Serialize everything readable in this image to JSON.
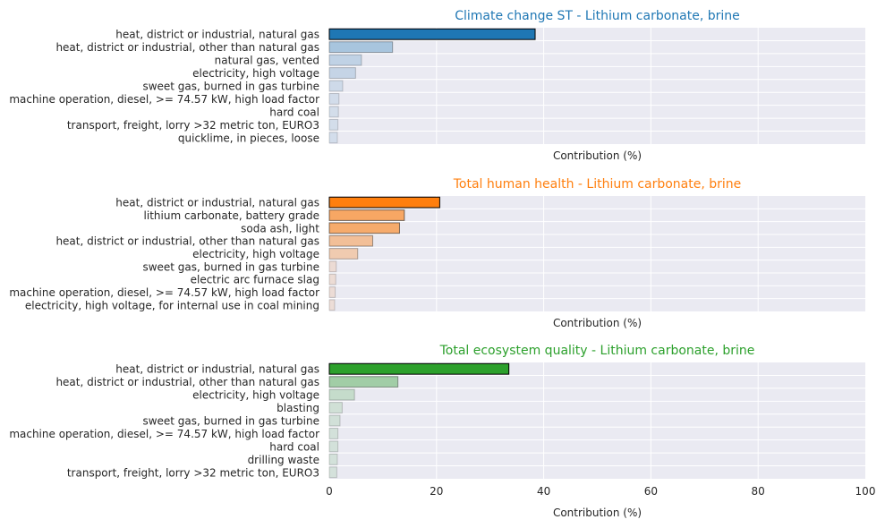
{
  "chart_data": [
    {
      "type": "bar",
      "orientation": "horizontal",
      "title": "Climate change ST - Lithium carbonate, brine",
      "title_color": "#1f77b4",
      "xlabel": "Contribution (%)",
      "xlim": [
        0,
        100
      ],
      "grid": true,
      "base_color": "#1f77b4",
      "categories": [
        "heat, district or industrial, natural gas",
        "heat, district or industrial, other than natural gas",
        "natural gas, vented",
        "electricity, high voltage",
        "sweet gas, burned in gas turbine",
        "machine operation, diesel, >= 74.57 kW, high load factor",
        "hard coal",
        "transport, freight, lorry >32 metric ton, EURO3",
        "quicklime, in pieces, loose"
      ],
      "values": [
        38.4,
        11.8,
        6.0,
        4.9,
        2.5,
        1.8,
        1.7,
        1.6,
        1.5
      ]
    },
    {
      "type": "bar",
      "orientation": "horizontal",
      "title": "Total human health - Lithium carbonate, brine",
      "title_color": "#ff7f0e",
      "xlabel": "Contribution (%)",
      "xlim": [
        0,
        100
      ],
      "grid": true,
      "base_color": "#ff7f0e",
      "categories": [
        "heat, district or industrial, natural gas",
        "lithium carbonate, battery grade",
        "soda ash, light",
        "heat, district or industrial, other than natural gas",
        "electricity, high voltage",
        "sweet gas, burned in gas turbine",
        "electric arc furnace slag",
        "machine operation, diesel, >= 74.57 kW, high load factor",
        "electricity, high voltage, for internal use in coal mining"
      ],
      "values": [
        20.6,
        14.0,
        13.1,
        8.1,
        5.3,
        1.3,
        1.2,
        1.1,
        1.0
      ]
    },
    {
      "type": "bar",
      "orientation": "horizontal",
      "title": "Total ecosystem quality - Lithium carbonate, brine",
      "title_color": "#2ca02c",
      "xlabel": "Contribution (%)",
      "xlim": [
        0,
        100
      ],
      "grid": true,
      "base_color": "#2ca02c",
      "tick_labels": [
        "0",
        "20",
        "40",
        "60",
        "80",
        "100"
      ],
      "categories": [
        "heat, district or industrial, natural gas",
        "heat, district or industrial, other than natural gas",
        "electricity, high voltage",
        "blasting",
        "sweet gas, burned in gas turbine",
        "machine operation, diesel, >= 74.57 kW, high load factor",
        "hard coal",
        "drilling waste",
        "transport, freight, lorry >32 metric ton, EURO3"
      ],
      "values": [
        33.5,
        12.8,
        4.7,
        2.4,
        2.0,
        1.6,
        1.6,
        1.5,
        1.4
      ]
    }
  ]
}
